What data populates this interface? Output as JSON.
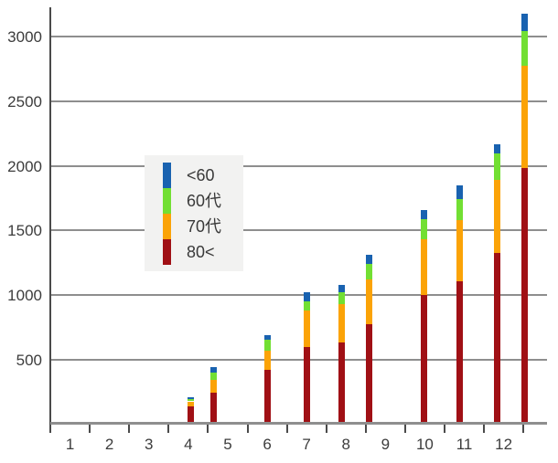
{
  "chart_data": {
    "type": "bar",
    "stacked": true,
    "title": "",
    "xlabel": "",
    "ylabel": "",
    "x_tick_labels": [
      "1",
      "2",
      "3",
      "4",
      "5",
      "6",
      "7",
      "8",
      "9",
      "10",
      "11",
      "12"
    ],
    "y_tick_labels": [
      "500",
      "1000",
      "1500",
      "2000",
      "2500",
      "3000"
    ],
    "y_tick_values": [
      500,
      1000,
      1500,
      2000,
      2500,
      3000
    ],
    "ylim": [
      0,
      3225
    ],
    "x_axis": {
      "type": "month-scale",
      "tick_count": 13,
      "note": "ticks bound 12 month intervals; bars sit at fractional month positions"
    },
    "bar_x_positions_months": [
      3.55,
      4.14,
      5.52,
      6.5,
      7.38,
      8.09,
      9.48,
      10.39,
      11.33,
      12.03
    ],
    "series": [
      {
        "name": "80<",
        "color": "#a01015",
        "values": [
          140,
          250,
          420,
          600,
          635,
          775,
          1005,
          1110,
          1330,
          1980
        ]
      },
      {
        "name": "70代",
        "color": "#fba307",
        "values": [
          40,
          95,
          155,
          280,
          300,
          345,
          430,
          470,
          560,
          795
        ]
      },
      {
        "name": "60代",
        "color": "#72df33",
        "values": [
          15,
          55,
          80,
          75,
          85,
          125,
          155,
          165,
          205,
          270
        ]
      },
      {
        "name": "<60",
        "color": "#1962b0",
        "values": [
          15,
          45,
          40,
          70,
          60,
          65,
          70,
          105,
          70,
          130
        ]
      }
    ],
    "stack_order": "bottom-to-top: 80<, 70代, 60代, <60",
    "totals": [
      210,
      445,
      695,
      1025,
      1080,
      1310,
      1660,
      1850,
      2165,
      3175
    ],
    "grid": true,
    "legend_position": "center-left"
  },
  "legend": {
    "items": [
      {
        "label": "<60",
        "color": "#1962b0"
      },
      {
        "label": "60代",
        "color": "#72df33"
      },
      {
        "label": "70代",
        "color": "#fba307"
      },
      {
        "label": "80<",
        "color": "#a01015"
      }
    ]
  },
  "colors": {
    "gridline": "#8e8e8e",
    "axis": "#4a4a4a",
    "text": "#3c3c3c",
    "legend_bg": "#f2f2f1"
  }
}
